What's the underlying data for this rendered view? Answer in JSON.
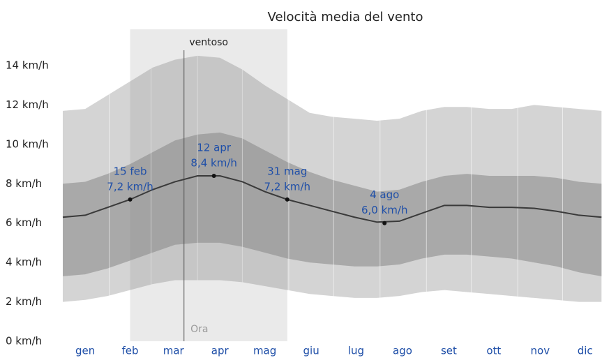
{
  "chart_data": {
    "type": "band-line",
    "title": "Velocità media del vento",
    "x": [
      0,
      15,
      30,
      45,
      60,
      75,
      90,
      105,
      120,
      135,
      150,
      165,
      180,
      195,
      210,
      225,
      240,
      255,
      270,
      285,
      300,
      315,
      330,
      345,
      360
    ],
    "xlim": [
      0,
      365
    ],
    "xticks": [
      {
        "value": 15,
        "label": "gen"
      },
      {
        "value": 45,
        "label": "feb"
      },
      {
        "value": 74,
        "label": "mar"
      },
      {
        "value": 105,
        "label": "apr"
      },
      {
        "value": 135,
        "label": "mag"
      },
      {
        "value": 166,
        "label": "giu"
      },
      {
        "value": 196,
        "label": "lug"
      },
      {
        "value": 227,
        "label": "ago"
      },
      {
        "value": 258,
        "label": "set"
      },
      {
        "value": 288,
        "label": "ott"
      },
      {
        "value": 319,
        "label": "nov"
      },
      {
        "value": 349,
        "label": "dic"
      }
    ],
    "xgrid": [
      31,
      59,
      90,
      120,
      151,
      181,
      212,
      243,
      273,
      304,
      334
    ],
    "ylim": [
      0,
      14
    ],
    "yticks": [
      {
        "value": 0,
        "label": "0 km/h"
      },
      {
        "value": 2,
        "label": "2 km/h"
      },
      {
        "value": 4,
        "label": "4 km/h"
      },
      {
        "value": 6,
        "label": "6 km/h"
      },
      {
        "value": 8,
        "label": "8 km/h"
      },
      {
        "value": 10,
        "label": "10 km/h"
      },
      {
        "value": 12,
        "label": "12 km/h"
      },
      {
        "value": 14,
        "label": "14 km/h"
      }
    ],
    "bands": [
      {
        "color": "#d4d4d4",
        "low": [
          2.0,
          2.1,
          2.3,
          2.6,
          2.9,
          3.1,
          3.1,
          3.1,
          3.0,
          2.8,
          2.6,
          2.4,
          2.3,
          2.2,
          2.2,
          2.3,
          2.5,
          2.6,
          2.5,
          2.4,
          2.3,
          2.2,
          2.1,
          2.0,
          2.0
        ],
        "high": [
          11.7,
          11.8,
          12.5,
          13.2,
          13.9,
          14.3,
          14.5,
          14.4,
          13.8,
          13.0,
          12.3,
          11.6,
          11.4,
          11.3,
          11.2,
          11.3,
          11.7,
          11.9,
          11.9,
          11.8,
          11.8,
          12.0,
          11.9,
          11.8,
          11.7
        ]
      },
      {
        "color": "#a9a9a9",
        "low": [
          3.3,
          3.4,
          3.7,
          4.1,
          4.5,
          4.9,
          5.0,
          5.0,
          4.8,
          4.5,
          4.2,
          4.0,
          3.9,
          3.8,
          3.8,
          3.9,
          4.2,
          4.4,
          4.4,
          4.3,
          4.2,
          4.0,
          3.8,
          3.5,
          3.3
        ],
        "high": [
          8.0,
          8.1,
          8.5,
          9.0,
          9.6,
          10.2,
          10.5,
          10.6,
          10.3,
          9.7,
          9.1,
          8.6,
          8.2,
          7.9,
          7.6,
          7.7,
          8.1,
          8.4,
          8.5,
          8.4,
          8.4,
          8.4,
          8.3,
          8.1,
          8.0
        ]
      }
    ],
    "series": [
      {
        "color": "#3a3a3a",
        "values": [
          6.3,
          6.4,
          6.8,
          7.2,
          7.7,
          8.1,
          8.4,
          8.4,
          8.1,
          7.6,
          7.2,
          6.9,
          6.6,
          6.3,
          6.05,
          6.1,
          6.5,
          6.9,
          6.9,
          6.8,
          6.8,
          6.75,
          6.6,
          6.4,
          6.3
        ]
      }
    ],
    "highlights": [
      {
        "date": "15 feb",
        "x": 45,
        "value": 7.2,
        "value_label": "7,2 km/h"
      },
      {
        "date": "12 apr",
        "x": 101,
        "value": 8.4,
        "value_label": "8,4 km/h"
      },
      {
        "date": "31 mag",
        "x": 150,
        "value": 7.2,
        "value_label": "7,2 km/h"
      },
      {
        "date": "4 ago",
        "x": 215,
        "value": 6.0,
        "value_label": "6,0 km/h"
      }
    ],
    "season": {
      "label": "ventoso",
      "range": [
        45,
        150
      ]
    },
    "now": {
      "label": "Ora",
      "x": 81
    }
  }
}
